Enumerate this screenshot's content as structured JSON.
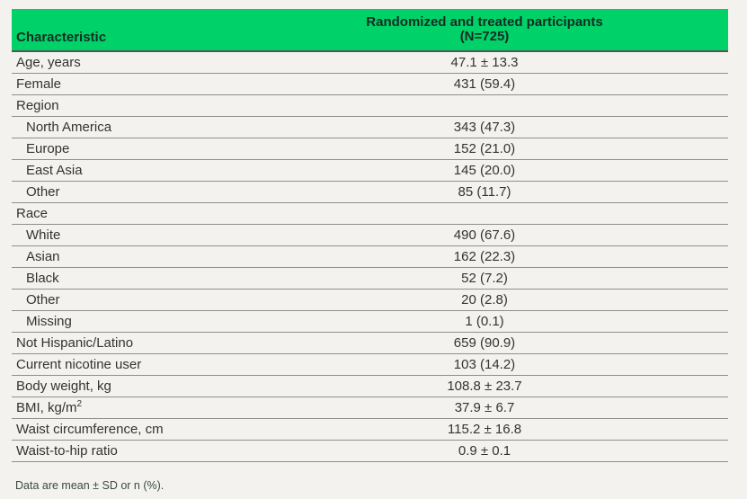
{
  "colors": {
    "header_green": "#00d269",
    "header_text": "#132d22",
    "row_text": "#333333",
    "row_line": "#8f8f8f",
    "header_line": "#565656",
    "background": "#f3f2ef",
    "footnote_text": "#3b4a42"
  },
  "header": {
    "col1": "Characteristic",
    "col2_line1": "Randomized and treated participants",
    "col2_line2": "(N=725)"
  },
  "footnote": "Data are mean ± SD or n (%).",
  "chart_data": {
    "type": "table",
    "title": "",
    "columns": [
      "Characteristic",
      "Randomized and treated participants (N=725)"
    ],
    "rows": [
      {
        "label": "Age, years",
        "value": "47.1 ± 13.3",
        "indent": false
      },
      {
        "label": "Female",
        "value": "431 (59.4)",
        "indent": false
      },
      {
        "label": "Region",
        "value": "",
        "indent": false
      },
      {
        "label": "North America",
        "value": "343 (47.3)",
        "indent": true
      },
      {
        "label": "Europe",
        "value": "152 (21.0)",
        "indent": true
      },
      {
        "label": "East Asia",
        "value": "145 (20.0)",
        "indent": true
      },
      {
        "label": "Other",
        "value": "85 (11.7)",
        "indent": true
      },
      {
        "label": "Race",
        "value": "",
        "indent": false
      },
      {
        "label": "White",
        "value": "490 (67.6)",
        "indent": true
      },
      {
        "label": "Asian",
        "value": "162 (22.3)",
        "indent": true
      },
      {
        "label": "Black",
        "value": "52 (7.2)",
        "indent": true
      },
      {
        "label": "Other",
        "value": "20 (2.8)",
        "indent": true
      },
      {
        "label": "Missing",
        "value": "1 (0.1)",
        "indent": true
      },
      {
        "label": "Not Hispanic/Latino",
        "value": "659 (90.9)",
        "indent": false
      },
      {
        "label": "Current nicotine user",
        "value": "103 (14.2)",
        "indent": false
      },
      {
        "label": "Body weight, kg",
        "value": "108.8 ± 23.7",
        "indent": false
      },
      {
        "label": "BMI, kg/m",
        "label_sup": "2",
        "value": "37.9 ± 6.7",
        "indent": false
      },
      {
        "label": "Waist circumference, cm",
        "value": "115.2 ± 16.8",
        "indent": false
      },
      {
        "label": "Waist-to-hip ratio",
        "value": "0.9 ± 0.1",
        "indent": false
      }
    ],
    "footnote": "Data are mean ± SD or n (%)."
  }
}
